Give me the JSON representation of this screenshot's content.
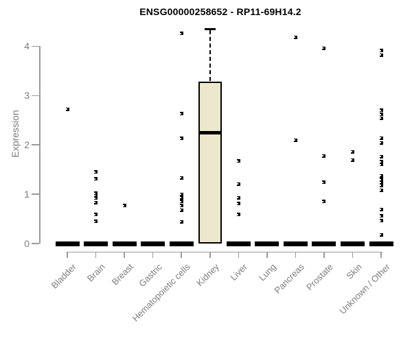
{
  "chart_data": {
    "type": "boxplot",
    "title": "ENSG00000258652 - RP11-69H14.2",
    "ylabel": "Expression",
    "xlabel": "",
    "ylim": [
      0,
      4.4
    ],
    "yticks": [
      0,
      1,
      2,
      3,
      4
    ],
    "grid": false,
    "legend": "none",
    "categories": [
      "Bladder",
      "Brain",
      "Breast",
      "Gastric",
      "Hematopoietic cells",
      "Kidney",
      "Liver",
      "Lung",
      "Pancreas",
      "Prostate",
      "Skin",
      "Unknown / Other"
    ],
    "series": [
      {
        "category": "Bladder",
        "q1": 0,
        "median": 0,
        "q3": 0,
        "outliers": [
          2.72
        ]
      },
      {
        "category": "Brain",
        "q1": 0,
        "median": 0,
        "q3": 0,
        "outliers": [
          1.45,
          1.31,
          1.02,
          0.97,
          0.92,
          0.83,
          0.59,
          0.45
        ]
      },
      {
        "category": "Breast",
        "q1": 0,
        "median": 0,
        "q3": 0,
        "outliers": [
          0.77
        ]
      },
      {
        "category": "Gastric",
        "q1": 0,
        "median": 0,
        "q3": 0,
        "outliers": []
      },
      {
        "category": "Hematopoietic cells",
        "q1": 0,
        "median": 0,
        "q3": 0,
        "outliers": [
          4.26,
          2.63,
          2.13,
          1.33,
          1.0,
          0.93,
          0.85,
          0.77,
          0.68,
          0.44
        ]
      },
      {
        "category": "Kidney",
        "q1": 0,
        "median": 2.25,
        "q3": 3.28,
        "whisker_high": 4.35,
        "outliers": []
      },
      {
        "category": "Liver",
        "q1": 0,
        "median": 0,
        "q3": 0,
        "outliers": [
          1.67,
          1.21,
          0.93,
          0.81,
          0.59
        ]
      },
      {
        "category": "Lung",
        "q1": 0,
        "median": 0,
        "q3": 0,
        "outliers": []
      },
      {
        "category": "Pancreas",
        "q1": 0,
        "median": 0,
        "q3": 0,
        "outliers": [
          4.18,
          2.1
        ]
      },
      {
        "category": "Prostate",
        "q1": 0,
        "median": 0,
        "q3": 0,
        "outliers": [
          3.96,
          1.78,
          1.24,
          0.85
        ]
      },
      {
        "category": "Skin",
        "q1": 0,
        "median": 0,
        "q3": 0,
        "outliers": [
          1.86,
          1.69
        ]
      },
      {
        "category": "Unknown / Other",
        "q1": 0,
        "median": 0,
        "q3": 0,
        "outliers": [
          3.91,
          3.82,
          2.7,
          2.62,
          2.54,
          2.14,
          2.04,
          1.76,
          1.66,
          1.6,
          1.37,
          1.3,
          1.24,
          1.18,
          1.08,
          0.69,
          0.56,
          0.46,
          0.18
        ]
      }
    ],
    "colors": {
      "box_fill": "#EDE7CB",
      "box_border": "#000000",
      "median": "#000000",
      "point": "#000000",
      "axis_line": "#9a9a9a",
      "tick_text": "#7d7d7d",
      "title_text": "#000000",
      "background": "#ffffff"
    }
  }
}
